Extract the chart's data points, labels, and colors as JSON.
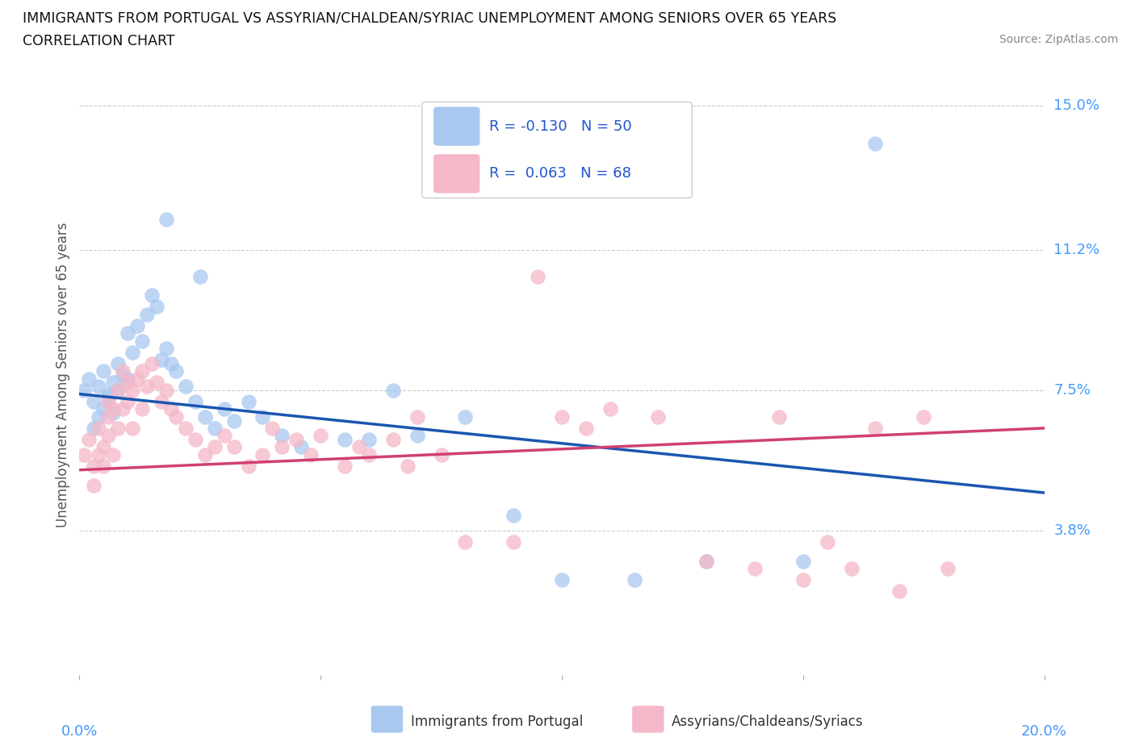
{
  "title_line1": "IMMIGRANTS FROM PORTUGAL VS ASSYRIAN/CHALDEAN/SYRIAC UNEMPLOYMENT AMONG SENIORS OVER 65 YEARS",
  "title_line2": "CORRELATION CHART",
  "source": "Source: ZipAtlas.com",
  "ylabel": "Unemployment Among Seniors over 65 years",
  "legend1_label": "Immigrants from Portugal",
  "legend2_label": "Assyrians/Chaldeans/Syriacs",
  "R1": -0.13,
  "N1": 50,
  "R2": 0.063,
  "N2": 68,
  "color_blue": "#a8c8f0",
  "color_pink": "#f4b8c8",
  "line_blue": "#1a56b0",
  "line_pink": "#d04070",
  "xlim": [
    0.0,
    0.2
  ],
  "ylim": [
    0.0,
    0.158
  ],
  "xticks": [
    0.0,
    0.05,
    0.1,
    0.15,
    0.2
  ],
  "ytick_positions": [
    0.038,
    0.075,
    0.112,
    0.15
  ],
  "ytick_labels": [
    "3.8%",
    "7.5%",
    "11.2%",
    "15.0%"
  ],
  "blue_line_y0": 0.074,
  "blue_line_y1": 0.048,
  "pink_line_y0": 0.054,
  "pink_line_y1": 0.065,
  "blue_x": [
    0.001,
    0.002,
    0.003,
    0.003,
    0.004,
    0.004,
    0.005,
    0.005,
    0.006,
    0.006,
    0.007,
    0.007,
    0.008,
    0.008,
    0.009,
    0.01,
    0.01,
    0.011,
    0.012,
    0.013,
    0.014,
    0.015,
    0.016,
    0.017,
    0.018,
    0.019,
    0.02,
    0.022,
    0.024,
    0.026,
    0.028,
    0.03,
    0.032,
    0.035,
    0.038,
    0.042,
    0.046,
    0.055,
    0.06,
    0.065,
    0.07,
    0.08,
    0.09,
    0.1,
    0.115,
    0.13,
    0.15,
    0.165,
    0.018,
    0.025
  ],
  "blue_y": [
    0.075,
    0.078,
    0.072,
    0.065,
    0.076,
    0.068,
    0.08,
    0.07,
    0.074,
    0.073,
    0.077,
    0.069,
    0.082,
    0.075,
    0.079,
    0.09,
    0.078,
    0.085,
    0.092,
    0.088,
    0.095,
    0.1,
    0.097,
    0.083,
    0.086,
    0.082,
    0.08,
    0.076,
    0.072,
    0.068,
    0.065,
    0.07,
    0.067,
    0.072,
    0.068,
    0.063,
    0.06,
    0.062,
    0.062,
    0.075,
    0.063,
    0.068,
    0.042,
    0.025,
    0.025,
    0.03,
    0.03,
    0.14,
    0.12,
    0.105
  ],
  "pink_x": [
    0.001,
    0.002,
    0.003,
    0.003,
    0.004,
    0.004,
    0.005,
    0.005,
    0.006,
    0.006,
    0.006,
    0.007,
    0.007,
    0.008,
    0.008,
    0.009,
    0.009,
    0.01,
    0.01,
    0.011,
    0.011,
    0.012,
    0.013,
    0.013,
    0.014,
    0.015,
    0.016,
    0.017,
    0.018,
    0.019,
    0.02,
    0.022,
    0.024,
    0.026,
    0.028,
    0.03,
    0.032,
    0.035,
    0.038,
    0.04,
    0.042,
    0.045,
    0.048,
    0.05,
    0.055,
    0.058,
    0.06,
    0.065,
    0.068,
    0.07,
    0.075,
    0.08,
    0.09,
    0.095,
    0.1,
    0.105,
    0.11,
    0.12,
    0.13,
    0.14,
    0.145,
    0.15,
    0.155,
    0.16,
    0.165,
    0.17,
    0.175,
    0.18
  ],
  "pink_y": [
    0.058,
    0.062,
    0.055,
    0.05,
    0.065,
    0.058,
    0.06,
    0.055,
    0.072,
    0.068,
    0.063,
    0.07,
    0.058,
    0.075,
    0.065,
    0.08,
    0.07,
    0.077,
    0.072,
    0.075,
    0.065,
    0.078,
    0.08,
    0.07,
    0.076,
    0.082,
    0.077,
    0.072,
    0.075,
    0.07,
    0.068,
    0.065,
    0.062,
    0.058,
    0.06,
    0.063,
    0.06,
    0.055,
    0.058,
    0.065,
    0.06,
    0.062,
    0.058,
    0.063,
    0.055,
    0.06,
    0.058,
    0.062,
    0.055,
    0.068,
    0.058,
    0.035,
    0.035,
    0.105,
    0.068,
    0.065,
    0.07,
    0.068,
    0.03,
    0.028,
    0.068,
    0.025,
    0.035,
    0.028,
    0.065,
    0.022,
    0.068,
    0.028
  ]
}
